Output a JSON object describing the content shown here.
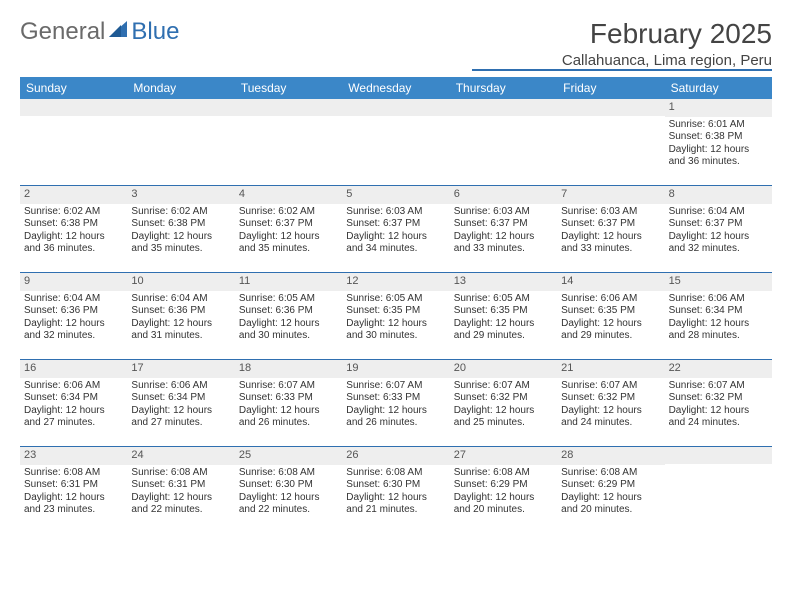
{
  "brand": {
    "general": "General",
    "blue": "Blue"
  },
  "title": "February 2025",
  "location": "Callahuanca, Lima region, Peru",
  "colors": {
    "header_bg": "#3b87c8",
    "rule": "#2f6fb0",
    "daynum_bg": "#eeeeee",
    "text": "#333333"
  },
  "day_names": [
    "Sunday",
    "Monday",
    "Tuesday",
    "Wednesday",
    "Thursday",
    "Friday",
    "Saturday"
  ],
  "weeks": [
    [
      null,
      null,
      null,
      null,
      null,
      null,
      {
        "n": "1",
        "sr": "Sunrise: 6:01 AM",
        "ss": "Sunset: 6:38 PM",
        "dl": "Daylight: 12 hours and 36 minutes."
      }
    ],
    [
      {
        "n": "2",
        "sr": "Sunrise: 6:02 AM",
        "ss": "Sunset: 6:38 PM",
        "dl": "Daylight: 12 hours and 36 minutes."
      },
      {
        "n": "3",
        "sr": "Sunrise: 6:02 AM",
        "ss": "Sunset: 6:38 PM",
        "dl": "Daylight: 12 hours and 35 minutes."
      },
      {
        "n": "4",
        "sr": "Sunrise: 6:02 AM",
        "ss": "Sunset: 6:37 PM",
        "dl": "Daylight: 12 hours and 35 minutes."
      },
      {
        "n": "5",
        "sr": "Sunrise: 6:03 AM",
        "ss": "Sunset: 6:37 PM",
        "dl": "Daylight: 12 hours and 34 minutes."
      },
      {
        "n": "6",
        "sr": "Sunrise: 6:03 AM",
        "ss": "Sunset: 6:37 PM",
        "dl": "Daylight: 12 hours and 33 minutes."
      },
      {
        "n": "7",
        "sr": "Sunrise: 6:03 AM",
        "ss": "Sunset: 6:37 PM",
        "dl": "Daylight: 12 hours and 33 minutes."
      },
      {
        "n": "8",
        "sr": "Sunrise: 6:04 AM",
        "ss": "Sunset: 6:37 PM",
        "dl": "Daylight: 12 hours and 32 minutes."
      }
    ],
    [
      {
        "n": "9",
        "sr": "Sunrise: 6:04 AM",
        "ss": "Sunset: 6:36 PM",
        "dl": "Daylight: 12 hours and 32 minutes."
      },
      {
        "n": "10",
        "sr": "Sunrise: 6:04 AM",
        "ss": "Sunset: 6:36 PM",
        "dl": "Daylight: 12 hours and 31 minutes."
      },
      {
        "n": "11",
        "sr": "Sunrise: 6:05 AM",
        "ss": "Sunset: 6:36 PM",
        "dl": "Daylight: 12 hours and 30 minutes."
      },
      {
        "n": "12",
        "sr": "Sunrise: 6:05 AM",
        "ss": "Sunset: 6:35 PM",
        "dl": "Daylight: 12 hours and 30 minutes."
      },
      {
        "n": "13",
        "sr": "Sunrise: 6:05 AM",
        "ss": "Sunset: 6:35 PM",
        "dl": "Daylight: 12 hours and 29 minutes."
      },
      {
        "n": "14",
        "sr": "Sunrise: 6:06 AM",
        "ss": "Sunset: 6:35 PM",
        "dl": "Daylight: 12 hours and 29 minutes."
      },
      {
        "n": "15",
        "sr": "Sunrise: 6:06 AM",
        "ss": "Sunset: 6:34 PM",
        "dl": "Daylight: 12 hours and 28 minutes."
      }
    ],
    [
      {
        "n": "16",
        "sr": "Sunrise: 6:06 AM",
        "ss": "Sunset: 6:34 PM",
        "dl": "Daylight: 12 hours and 27 minutes."
      },
      {
        "n": "17",
        "sr": "Sunrise: 6:06 AM",
        "ss": "Sunset: 6:34 PM",
        "dl": "Daylight: 12 hours and 27 minutes."
      },
      {
        "n": "18",
        "sr": "Sunrise: 6:07 AM",
        "ss": "Sunset: 6:33 PM",
        "dl": "Daylight: 12 hours and 26 minutes."
      },
      {
        "n": "19",
        "sr": "Sunrise: 6:07 AM",
        "ss": "Sunset: 6:33 PM",
        "dl": "Daylight: 12 hours and 26 minutes."
      },
      {
        "n": "20",
        "sr": "Sunrise: 6:07 AM",
        "ss": "Sunset: 6:32 PM",
        "dl": "Daylight: 12 hours and 25 minutes."
      },
      {
        "n": "21",
        "sr": "Sunrise: 6:07 AM",
        "ss": "Sunset: 6:32 PM",
        "dl": "Daylight: 12 hours and 24 minutes."
      },
      {
        "n": "22",
        "sr": "Sunrise: 6:07 AM",
        "ss": "Sunset: 6:32 PM",
        "dl": "Daylight: 12 hours and 24 minutes."
      }
    ],
    [
      {
        "n": "23",
        "sr": "Sunrise: 6:08 AM",
        "ss": "Sunset: 6:31 PM",
        "dl": "Daylight: 12 hours and 23 minutes."
      },
      {
        "n": "24",
        "sr": "Sunrise: 6:08 AM",
        "ss": "Sunset: 6:31 PM",
        "dl": "Daylight: 12 hours and 22 minutes."
      },
      {
        "n": "25",
        "sr": "Sunrise: 6:08 AM",
        "ss": "Sunset: 6:30 PM",
        "dl": "Daylight: 12 hours and 22 minutes."
      },
      {
        "n": "26",
        "sr": "Sunrise: 6:08 AM",
        "ss": "Sunset: 6:30 PM",
        "dl": "Daylight: 12 hours and 21 minutes."
      },
      {
        "n": "27",
        "sr": "Sunrise: 6:08 AM",
        "ss": "Sunset: 6:29 PM",
        "dl": "Daylight: 12 hours and 20 minutes."
      },
      {
        "n": "28",
        "sr": "Sunrise: 6:08 AM",
        "ss": "Sunset: 6:29 PM",
        "dl": "Daylight: 12 hours and 20 minutes."
      },
      null
    ]
  ]
}
